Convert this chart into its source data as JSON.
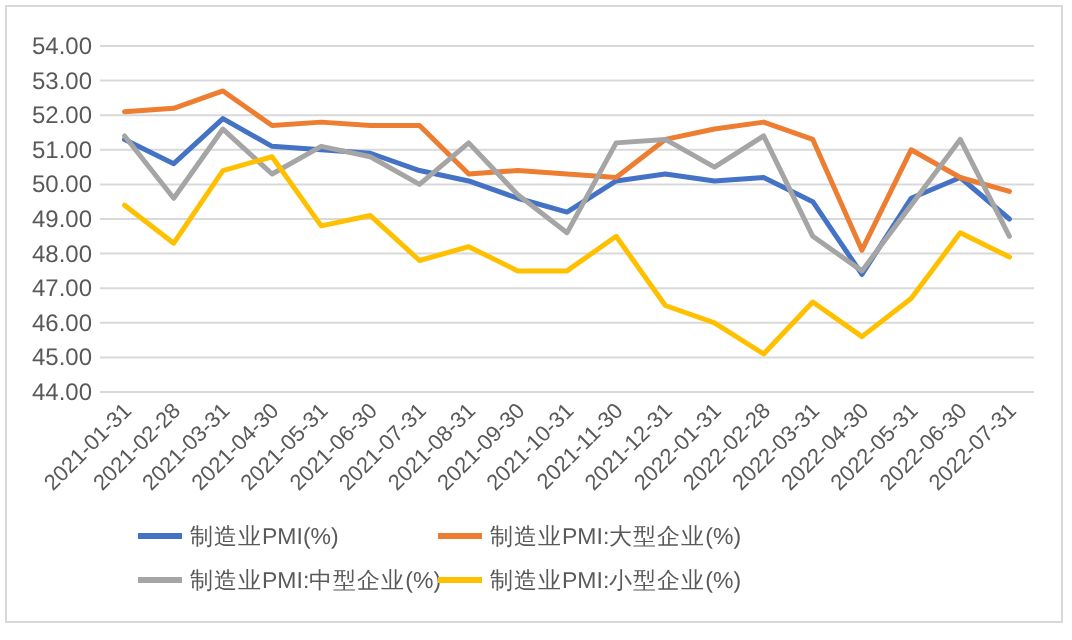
{
  "chart_data": {
    "type": "line",
    "categories": [
      "2021-01-31",
      "2021-02-28",
      "2021-03-31",
      "2021-04-30",
      "2021-05-31",
      "2021-06-30",
      "2021-07-31",
      "2021-08-31",
      "2021-09-30",
      "2021-10-31",
      "2021-11-30",
      "2021-12-31",
      "2022-01-31",
      "2022-02-28",
      "2022-03-31",
      "2022-04-30",
      "2022-05-31",
      "2022-06-30",
      "2022-07-31"
    ],
    "series": [
      {
        "name": "制造业PMI(%)",
        "color": "#4472c4",
        "values": [
          51.3,
          50.6,
          51.9,
          51.1,
          51.0,
          50.9,
          50.4,
          50.1,
          49.6,
          49.2,
          50.1,
          50.3,
          50.1,
          50.2,
          49.5,
          47.4,
          49.6,
          50.2,
          49.0
        ]
      },
      {
        "name": "制造业PMI:大型企业(%)",
        "color": "#ed7d31",
        "values": [
          52.1,
          52.2,
          52.7,
          51.7,
          51.8,
          51.7,
          51.7,
          50.3,
          50.4,
          50.3,
          50.2,
          51.3,
          51.6,
          51.8,
          51.3,
          48.1,
          51.0,
          50.2,
          49.8
        ]
      },
      {
        "name": "制造业PMI:中型企业(%)",
        "color": "#a5a5a5",
        "values": [
          51.4,
          49.6,
          51.6,
          50.3,
          51.1,
          50.8,
          50.0,
          51.2,
          49.7,
          48.6,
          51.2,
          51.3,
          50.5,
          51.4,
          48.5,
          47.5,
          49.4,
          51.3,
          48.5
        ]
      },
      {
        "name": "制造业PMI:小型企业(%)",
        "color": "#ffc000",
        "values": [
          49.4,
          48.3,
          50.4,
          50.8,
          48.8,
          49.1,
          47.8,
          48.2,
          47.5,
          47.5,
          48.5,
          46.5,
          46.0,
          45.1,
          46.6,
          45.6,
          46.7,
          48.6,
          47.9
        ]
      }
    ],
    "ylim": [
      44,
      54
    ],
    "yticks": [
      {
        "value": 44,
        "label": "44.00"
      },
      {
        "value": 45,
        "label": "45.00"
      },
      {
        "value": 46,
        "label": "46.00"
      },
      {
        "value": 47,
        "label": "47.00"
      },
      {
        "value": 48,
        "label": "48.00"
      },
      {
        "value": 49,
        "label": "49.00"
      },
      {
        "value": 50,
        "label": "50.00"
      },
      {
        "value": 51,
        "label": "51.00"
      },
      {
        "value": 52,
        "label": "52.00"
      },
      {
        "value": 53,
        "label": "53.00"
      },
      {
        "value": 54,
        "label": "54.00"
      }
    ],
    "grid": "y",
    "legend": "bottom",
    "marker": "none",
    "line_style": "solid"
  }
}
